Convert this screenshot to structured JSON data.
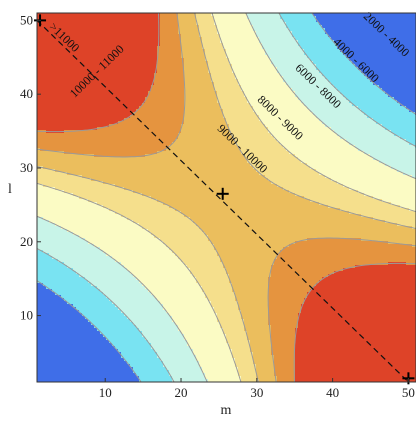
{
  "chart_data": {
    "type": "contour",
    "title": "",
    "xlabel": "m",
    "ylabel": "l",
    "xlim": [
      1,
      51
    ],
    "ylim": [
      1,
      51
    ],
    "x_ticks": [
      10,
      20,
      30,
      40,
      50
    ],
    "y_ticks": [
      10,
      20,
      30,
      40,
      50
    ],
    "legend": "none",
    "grid": false,
    "levels": [
      {
        "label": "",
        "min": 0,
        "max": 2000,
        "color": "#3f6ee8"
      },
      {
        "label": "2000 - 4000",
        "min": 2000,
        "max": 4000,
        "color": "#79e3f2"
      },
      {
        "label": "4000 - 6000",
        "min": 4000,
        "max": 6000,
        "color": "#c8f4e8"
      },
      {
        "label": "6000 - 8000",
        "min": 6000,
        "max": 8000,
        "color": "#fbfbc4"
      },
      {
        "label": "8000 - 9000",
        "min": 8000,
        "max": 9000,
        "color": "#f5df8c"
      },
      {
        "label": "9000 - 10000",
        "min": 9000,
        "max": 10000,
        "color": "#ebbe5d"
      },
      {
        "label": "10000 - 11000",
        "min": 10000,
        "max": 11000,
        "color": "#e5943f"
      },
      {
        "label": ">11000",
        "min": 11000,
        "max": 12000,
        "color": "#de4328"
      }
    ],
    "contour_label_positions": [
      {
        "text": "2000 - 4000",
        "x": 47.0,
        "y": 48.0
      },
      {
        "text": "4000 - 6000",
        "x": 43.0,
        "y": 44.5
      },
      {
        "text": "6000 - 8000",
        "x": 38.0,
        "y": 41.0
      },
      {
        "text": "8000 - 9000",
        "x": 33.0,
        "y": 36.7
      },
      {
        "text": "9000 - 10000",
        "x": 28.0,
        "y": 32.5
      },
      {
        "text": "10000 - 11000",
        "x": 9.0,
        "y": 43.0
      },
      {
        "text": ">11000",
        "x": 4.5,
        "y": 47.6
      }
    ],
    "diagonal_line": {
      "from": [
        1,
        50
      ],
      "to": [
        50,
        1
      ],
      "style": "dashed"
    },
    "markers": [
      {
        "x": 1.4,
        "y": 50,
        "symbol": "+"
      },
      {
        "x": 25.5,
        "y": 26.5,
        "symbol": "+"
      },
      {
        "x": 50,
        "y": 1.5,
        "symbol": "+"
      }
    ]
  }
}
